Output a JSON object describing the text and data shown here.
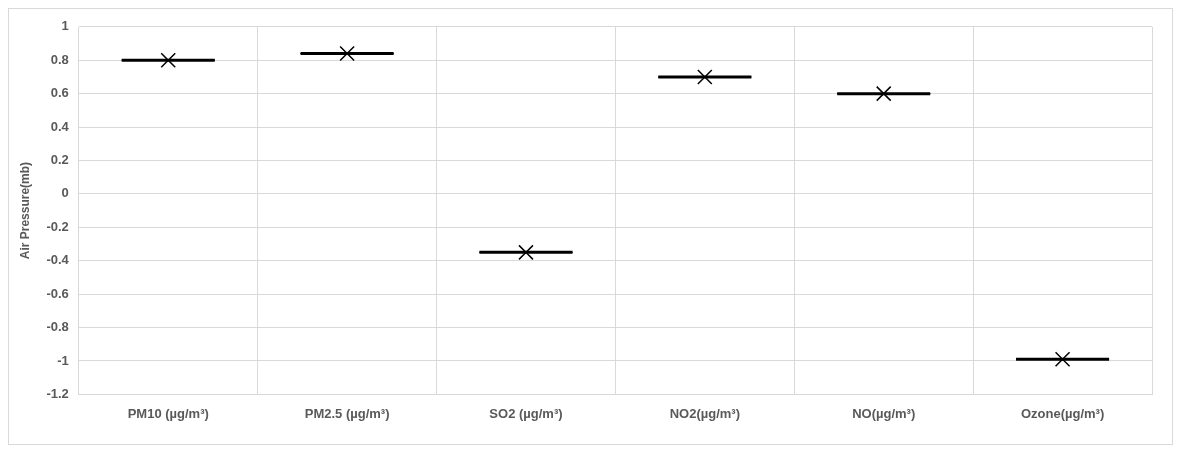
{
  "chart_data": {
    "type": "box",
    "ylabel": "Air Pressure(mb)",
    "categories": [
      "PM10 (µg/m³)",
      "PM2.5 (µg/m³)",
      "SO2 (µg/m³)",
      "NO2(µg/m³)",
      "NO(µg/m³)",
      "Ozone(µg/m³)"
    ],
    "color": "#000000",
    "marker": "cross",
    "boxes": [
      {
        "low": 0.8,
        "q1": 0.8,
        "median": 0.8,
        "q3": 0.8,
        "high": 0.8,
        "mean": 0.8
      },
      {
        "low": 0.84,
        "q1": 0.84,
        "median": 0.84,
        "q3": 0.84,
        "high": 0.84,
        "mean": 0.84
      },
      {
        "low": -0.35,
        "q1": -0.35,
        "median": -0.35,
        "q3": -0.35,
        "high": -0.35,
        "mean": -0.35
      },
      {
        "low": 0.7,
        "q1": 0.7,
        "median": 0.7,
        "q3": 0.7,
        "high": 0.7,
        "mean": 0.7
      },
      {
        "low": 0.6,
        "q1": 0.6,
        "median": 0.6,
        "q3": 0.6,
        "high": 0.6,
        "mean": 0.6
      },
      {
        "low": -0.99,
        "q1": -0.99,
        "median": -0.99,
        "q3": -0.99,
        "high": -0.99,
        "mean": -0.99
      }
    ],
    "ylim": [
      -1.2,
      1
    ],
    "yticks": [
      -1.2,
      -1,
      -0.8,
      -0.6,
      -0.4,
      -0.2,
      0,
      0.2,
      0.4,
      0.6,
      0.8,
      1
    ],
    "grid": true
  }
}
